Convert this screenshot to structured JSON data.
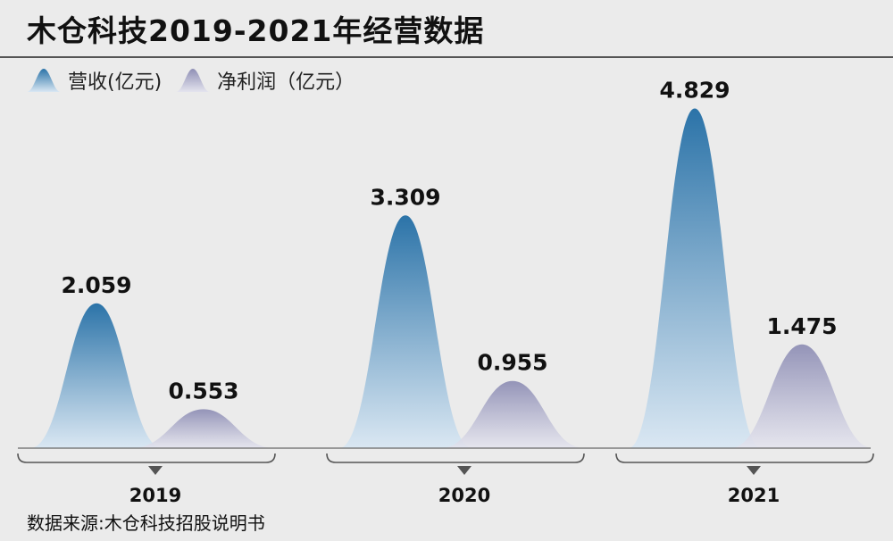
{
  "title": "木仓科技2019-2021年经营数据",
  "source": "数据来源:木仓科技招股说明书",
  "colors": {
    "revenue_top": "#2b73a8",
    "revenue_bottom": "#d9e7f3",
    "profit_top": "#8f8fb5",
    "profit_bottom": "#e4e4ee",
    "background": "#ebebeb"
  },
  "chart_data": {
    "type": "area",
    "categories": [
      "2019",
      "2020",
      "2021"
    ],
    "series": [
      {
        "name": "营收(亿元)",
        "values": [
          2.059,
          3.309,
          4.829
        ],
        "labels": [
          "2.059",
          "3.309",
          "4.829"
        ]
      },
      {
        "name": "净利润（亿元）",
        "values": [
          0.553,
          0.955,
          1.475
        ],
        "labels": [
          "0.553",
          "0.955",
          "1.475"
        ]
      }
    ],
    "ylim": [
      0,
      5.0
    ],
    "legend": "top-left",
    "grid": false
  }
}
